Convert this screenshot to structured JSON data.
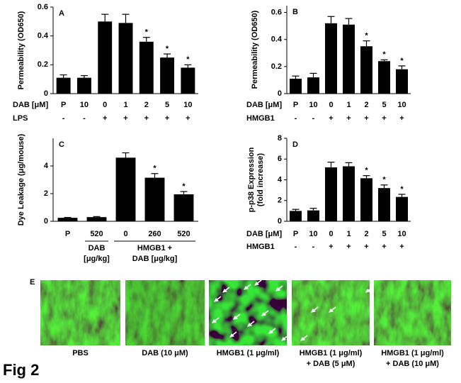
{
  "chart_data": [
    {
      "type": "bar",
      "panel": "A",
      "ylabel": "Permeability (OD650)",
      "color": "#000000",
      "categories": [
        "P",
        "10",
        "0",
        "1",
        "2",
        "5",
        "10"
      ],
      "category_title": "DAB [μM]",
      "values": [
        0.11,
        0.11,
        0.5,
        0.49,
        0.36,
        0.25,
        0.18
      ],
      "errors": [
        0.02,
        0.015,
        0.05,
        0.06,
        0.03,
        0.025,
        0.02
      ],
      "significance": [
        null,
        null,
        null,
        null,
        "*",
        "*",
        "*"
      ],
      "treatment_label": "LPS",
      "treatment": [
        "-",
        "-",
        "+",
        "+",
        "+",
        "+",
        "+"
      ],
      "ylim": [
        0,
        0.6
      ],
      "yticks": [
        0,
        0.2,
        0.4,
        0.6
      ]
    },
    {
      "type": "bar",
      "panel": "B",
      "ylabel": "Permeability (OD650)",
      "color": "#000000",
      "categories": [
        "P",
        "10",
        "0",
        "1",
        "2",
        "5",
        "10"
      ],
      "category_title": "DAB [μM]",
      "values": [
        0.11,
        0.12,
        0.52,
        0.51,
        0.35,
        0.24,
        0.18
      ],
      "errors": [
        0.02,
        0.03,
        0.05,
        0.045,
        0.04,
        0.01,
        0.025
      ],
      "significance": [
        null,
        null,
        null,
        null,
        "*",
        "*",
        "*"
      ],
      "treatment_label": "HMGB1",
      "treatment": [
        "-",
        "-",
        "+",
        "+",
        "+",
        "+",
        "+"
      ],
      "ylim": [
        0,
        0.65
      ],
      "yticks": [
        0,
        0.2,
        0.4,
        0.6
      ]
    },
    {
      "type": "bar",
      "panel": "C",
      "ylabel": "Dye Leakage (μg/mouse)",
      "color": "#000000",
      "categories": [
        "P",
        "520",
        "0",
        "260",
        "520"
      ],
      "values": [
        0.25,
        0.3,
        4.6,
        3.15,
        1.95
      ],
      "errors": [
        0.03,
        0.04,
        0.35,
        0.3,
        0.2
      ],
      "significance": [
        null,
        null,
        null,
        "*",
        "*"
      ],
      "groups": [
        [
          "DAB",
          "[μg/kg]"
        ],
        [
          "HMGB1 +",
          "DAB [μg/kg]"
        ]
      ],
      "ylim": [
        0,
        6
      ],
      "yticks": [
        0,
        2,
        4
      ]
    },
    {
      "type": "bar",
      "panel": "D",
      "ylabel": [
        "p-p38 Expression",
        "(fold increase)"
      ],
      "color": "#000000",
      "categories": [
        "P",
        "10",
        "0",
        "1",
        "2",
        "5",
        "10"
      ],
      "category_title": "DAB [μM]",
      "values": [
        1.0,
        1.05,
        5.2,
        5.3,
        4.15,
        3.2,
        2.35
      ],
      "errors": [
        0.15,
        0.2,
        0.5,
        0.35,
        0.25,
        0.3,
        0.25
      ],
      "significance": [
        null,
        null,
        null,
        null,
        "*",
        "*",
        "*"
      ],
      "treatment_label": "HMGB1",
      "treatment": [
        "-",
        "-",
        "+",
        "+",
        "+",
        "+",
        "+"
      ],
      "ylim": [
        0,
        8
      ],
      "yticks": [
        0,
        2,
        4,
        6,
        8
      ]
    }
  ],
  "panel_e": {
    "label": "E",
    "captions": [
      [
        "PBS"
      ],
      [
        "DAB (10 μM)"
      ],
      [
        "HMGB1 (1 μg/ml)"
      ],
      [
        "HMGB1 (1 μg/ml)",
        "+ DAB (5 μM)"
      ],
      [
        "HMGB1 (1 μg/ml)",
        "+ DAB (10 μM)"
      ]
    ]
  },
  "figure_label": "Fig 2"
}
